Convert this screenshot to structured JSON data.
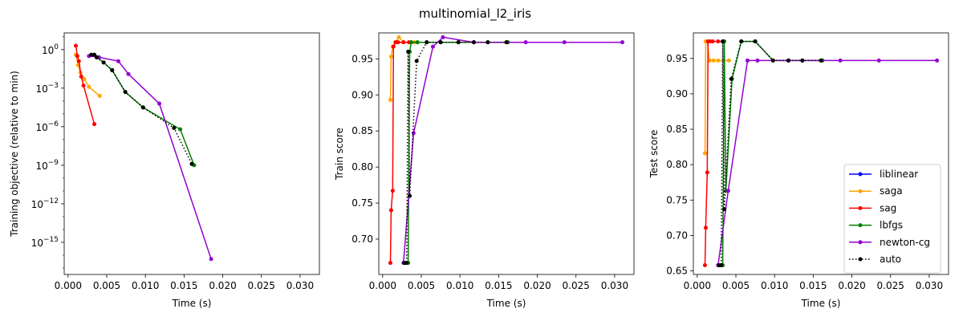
{
  "figure": {
    "title": "multinomial_l2_iris"
  },
  "colors": {
    "liblinear": "#0000ff",
    "saga": "#ffa500",
    "sag": "#ff0000",
    "lbfgs": "#008000",
    "newton-cg": "#9400d3",
    "auto": "#000000"
  },
  "legend": {
    "placement": "lower-right of third panel",
    "entries": [
      "liblinear",
      "saga",
      "sag",
      "lbfgs",
      "newton-cg",
      "auto"
    ]
  },
  "chart_data": [
    {
      "type": "line",
      "xlabel": "Time (s)",
      "ylabel": "Training objective (relative to min)",
      "yscale": "log",
      "xlim": [
        -0.0005,
        0.0325
      ],
      "ylim_exponent": [
        -17.5,
        1.3
      ],
      "x_ticks": [
        0.0,
        0.005,
        0.01,
        0.015,
        0.02,
        0.025,
        0.03
      ],
      "x_tick_labels": [
        "0.000",
        "0.005",
        "0.010",
        "0.015",
        "0.020",
        "0.025",
        "0.030"
      ],
      "y_ticks_exponent": [
        0,
        -3,
        -6,
        -9,
        -12,
        -15
      ],
      "y_tick_labels": [
        [
          "10",
          "0"
        ],
        [
          "10",
          "−3"
        ],
        [
          "10",
          "−6"
        ],
        [
          "10",
          "−9"
        ],
        [
          "10",
          "−12"
        ],
        [
          "10",
          "−15"
        ]
      ],
      "series": [
        {
          "name": "saga",
          "style": "solid",
          "x": [
            0.001,
            0.0013,
            0.0016,
            0.0021,
            0.0027,
            0.0041
          ],
          "y_log10": [
            -0.4,
            -1.2,
            -1.8,
            -2.3,
            -2.9,
            -3.6
          ]
        },
        {
          "name": "sag",
          "style": "solid",
          "x": [
            0.001,
            0.0012,
            0.0014,
            0.0017,
            0.002,
            0.0034
          ],
          "y_log10": [
            0.3,
            -0.5,
            -0.9,
            -2.1,
            -2.8,
            -5.8
          ]
        },
        {
          "name": "lbfgs",
          "style": "solid",
          "x": [
            0.003,
            0.0034,
            0.0037,
            0.0046,
            0.0057,
            0.0074,
            0.0097,
            0.0145,
            0.0163
          ],
          "y_log10": [
            -0.4,
            -0.4,
            -0.6,
            -1.0,
            -1.6,
            -3.3,
            -4.5,
            -6.2,
            -9.0
          ]
        },
        {
          "name": "newton-cg",
          "style": "solid",
          "x": [
            0.0027,
            0.004,
            0.0065,
            0.0078,
            0.0118,
            0.0185
          ],
          "y_log10": [
            -0.5,
            -0.6,
            -0.9,
            -1.9,
            -4.2,
            -16.3
          ]
        },
        {
          "name": "auto",
          "style": "dotted",
          "x": [
            0.003,
            0.0034,
            0.0037,
            0.0046,
            0.0057,
            0.0074,
            0.0097,
            0.0137,
            0.016
          ],
          "y_log10": [
            -0.4,
            -0.4,
            -0.6,
            -1.0,
            -1.6,
            -3.3,
            -4.5,
            -6.1,
            -8.9
          ]
        }
      ]
    },
    {
      "type": "line",
      "xlabel": "Time (s)",
      "ylabel": "Train score",
      "xlim": [
        -0.0005,
        0.0325
      ],
      "ylim": [
        0.651,
        0.986
      ],
      "x_ticks": [
        0.0,
        0.005,
        0.01,
        0.015,
        0.02,
        0.025,
        0.03
      ],
      "x_tick_labels": [
        "0.000",
        "0.005",
        "0.010",
        "0.015",
        "0.020",
        "0.025",
        "0.030"
      ],
      "y_ticks": [
        0.7,
        0.75,
        0.8,
        0.85,
        0.9,
        0.95
      ],
      "y_tick_labels": [
        "0.70",
        "0.75",
        "0.80",
        "0.85",
        "0.90",
        "0.95"
      ],
      "series": [
        {
          "name": "saga",
          "style": "solid",
          "x": [
            0.001,
            0.0011,
            0.0013,
            0.0016,
            0.0021,
            0.0027,
            0.0041
          ],
          "y": [
            0.893,
            0.953,
            0.967,
            0.973,
            0.98,
            0.973,
            0.973
          ]
        },
        {
          "name": "sag",
          "style": "solid",
          "x": [
            0.001,
            0.0011,
            0.0013,
            0.0014,
            0.0017,
            0.002,
            0.0027,
            0.0034
          ],
          "y": [
            0.667,
            0.74,
            0.767,
            0.967,
            0.973,
            0.973,
            0.973,
            0.973
          ]
        },
        {
          "name": "lbfgs",
          "style": "solid",
          "x": [
            0.003,
            0.0033,
            0.0035,
            0.0037,
            0.0045,
            0.0057,
            0.0075,
            0.0098,
            0.0118,
            0.0136,
            0.0162
          ],
          "y": [
            0.667,
            0.667,
            0.96,
            0.973,
            0.973,
            0.973,
            0.973,
            0.973,
            0.973,
            0.973,
            0.973
          ]
        },
        {
          "name": "newton-cg",
          "style": "solid",
          "x": [
            0.0027,
            0.004,
            0.0065,
            0.0078,
            0.0118,
            0.0185,
            0.0235,
            0.031
          ],
          "y": [
            0.667,
            0.847,
            0.967,
            0.98,
            0.973,
            0.973,
            0.973,
            0.973
          ]
        },
        {
          "name": "auto",
          "style": "dotted",
          "x": [
            0.0028,
            0.0031,
            0.0033,
            0.0035,
            0.0044,
            0.0057,
            0.0075,
            0.0098,
            0.0118,
            0.0136,
            0.016
          ],
          "y": [
            0.667,
            0.667,
            0.96,
            0.76,
            0.947,
            0.973,
            0.973,
            0.973,
            0.973,
            0.973,
            0.973
          ]
        }
      ]
    },
    {
      "type": "line",
      "xlabel": "Time (s)",
      "ylabel": "Test score",
      "xlim": [
        -0.0005,
        0.0325
      ],
      "ylim": [
        0.645,
        0.986
      ],
      "x_ticks": [
        0.0,
        0.005,
        0.01,
        0.015,
        0.02,
        0.025,
        0.03
      ],
      "x_tick_labels": [
        "0.000",
        "0.005",
        "0.010",
        "0.015",
        "0.020",
        "0.025",
        "0.030"
      ],
      "y_ticks": [
        0.65,
        0.7,
        0.75,
        0.8,
        0.85,
        0.9,
        0.95
      ],
      "y_tick_labels": [
        "0.65",
        "0.70",
        "0.75",
        "0.80",
        "0.85",
        "0.90",
        "0.95"
      ],
      "series": [
        {
          "name": "saga",
          "style": "solid",
          "x": [
            0.001,
            0.0011,
            0.0013,
            0.0016,
            0.0021,
            0.0027,
            0.0041
          ],
          "y": [
            0.816,
            0.974,
            0.974,
            0.947,
            0.947,
            0.947,
            0.947
          ]
        },
        {
          "name": "sag",
          "style": "solid",
          "x": [
            0.001,
            0.0011,
            0.0013,
            0.0014,
            0.0017,
            0.002,
            0.0027,
            0.0034
          ],
          "y": [
            0.658,
            0.711,
            0.789,
            0.974,
            0.974,
            0.974,
            0.974,
            0.974
          ]
        },
        {
          "name": "lbfgs",
          "style": "solid",
          "x": [
            0.003,
            0.0033,
            0.0035,
            0.0037,
            0.0045,
            0.0057,
            0.0075,
            0.0098,
            0.0118,
            0.0136,
            0.0162
          ],
          "y": [
            0.658,
            0.658,
            0.974,
            0.763,
            0.921,
            0.974,
            0.974,
            0.947,
            0.947,
            0.947,
            0.947
          ]
        },
        {
          "name": "newton-cg",
          "style": "solid",
          "x": [
            0.0027,
            0.004,
            0.0065,
            0.0078,
            0.0118,
            0.0185,
            0.0235,
            0.031
          ],
          "y": [
            0.658,
            0.763,
            0.947,
            0.947,
            0.947,
            0.947,
            0.947,
            0.947
          ]
        },
        {
          "name": "auto",
          "style": "dotted",
          "x": [
            0.0028,
            0.0031,
            0.0033,
            0.0035,
            0.0044,
            0.0057,
            0.0075,
            0.0098,
            0.0118,
            0.0136,
            0.016
          ],
          "y": [
            0.658,
            0.658,
            0.974,
            0.737,
            0.921,
            0.974,
            0.974,
            0.947,
            0.947,
            0.947,
            0.947
          ]
        }
      ]
    }
  ]
}
